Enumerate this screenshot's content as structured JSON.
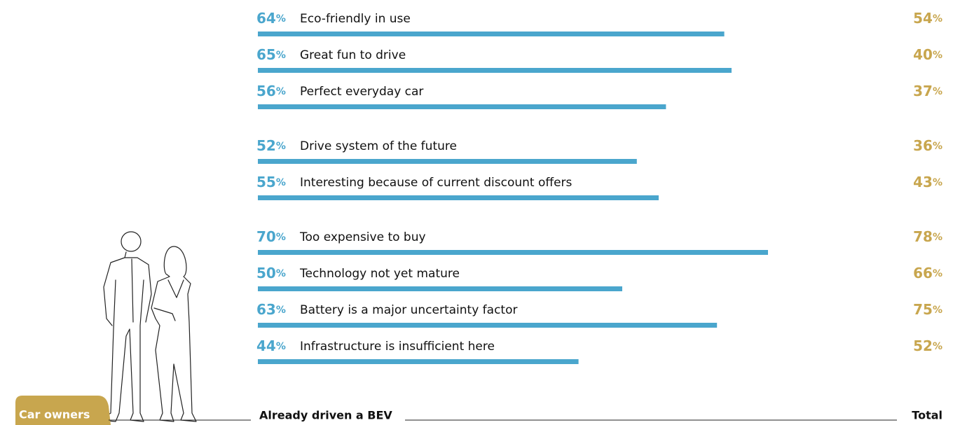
{
  "chart_data": {
    "type": "bar",
    "orientation": "horizontal",
    "categories": [
      "Eco-friendly in use",
      "Great fun to drive",
      "Perfect everyday car",
      "Drive system of the future",
      "Interesting because of current discount offers",
      "Too expensive to buy",
      "Technology not yet mature",
      "Battery is a major uncertainty factor",
      "Infrastructure is insufficient here"
    ],
    "series": [
      {
        "name": "Already driven a BEV",
        "color": "#4aa6cd",
        "values": [
          64,
          65,
          56,
          52,
          55,
          70,
          50,
          63,
          44
        ],
        "value_labels": [
          "64%",
          "65%",
          "56%",
          "52%",
          "55%",
          "70%",
          "50%",
          "63%",
          "44%"
        ]
      },
      {
        "name": "Total",
        "color": "#c8a64e",
        "values": [
          54,
          40,
          37,
          36,
          43,
          78,
          66,
          75,
          52
        ],
        "value_labels": [
          "54%",
          "40%",
          "37%",
          "36%",
          "43%",
          "78%",
          "66%",
          "75%",
          "52%"
        ]
      }
    ],
    "group_label": "Car owners"
  }
}
